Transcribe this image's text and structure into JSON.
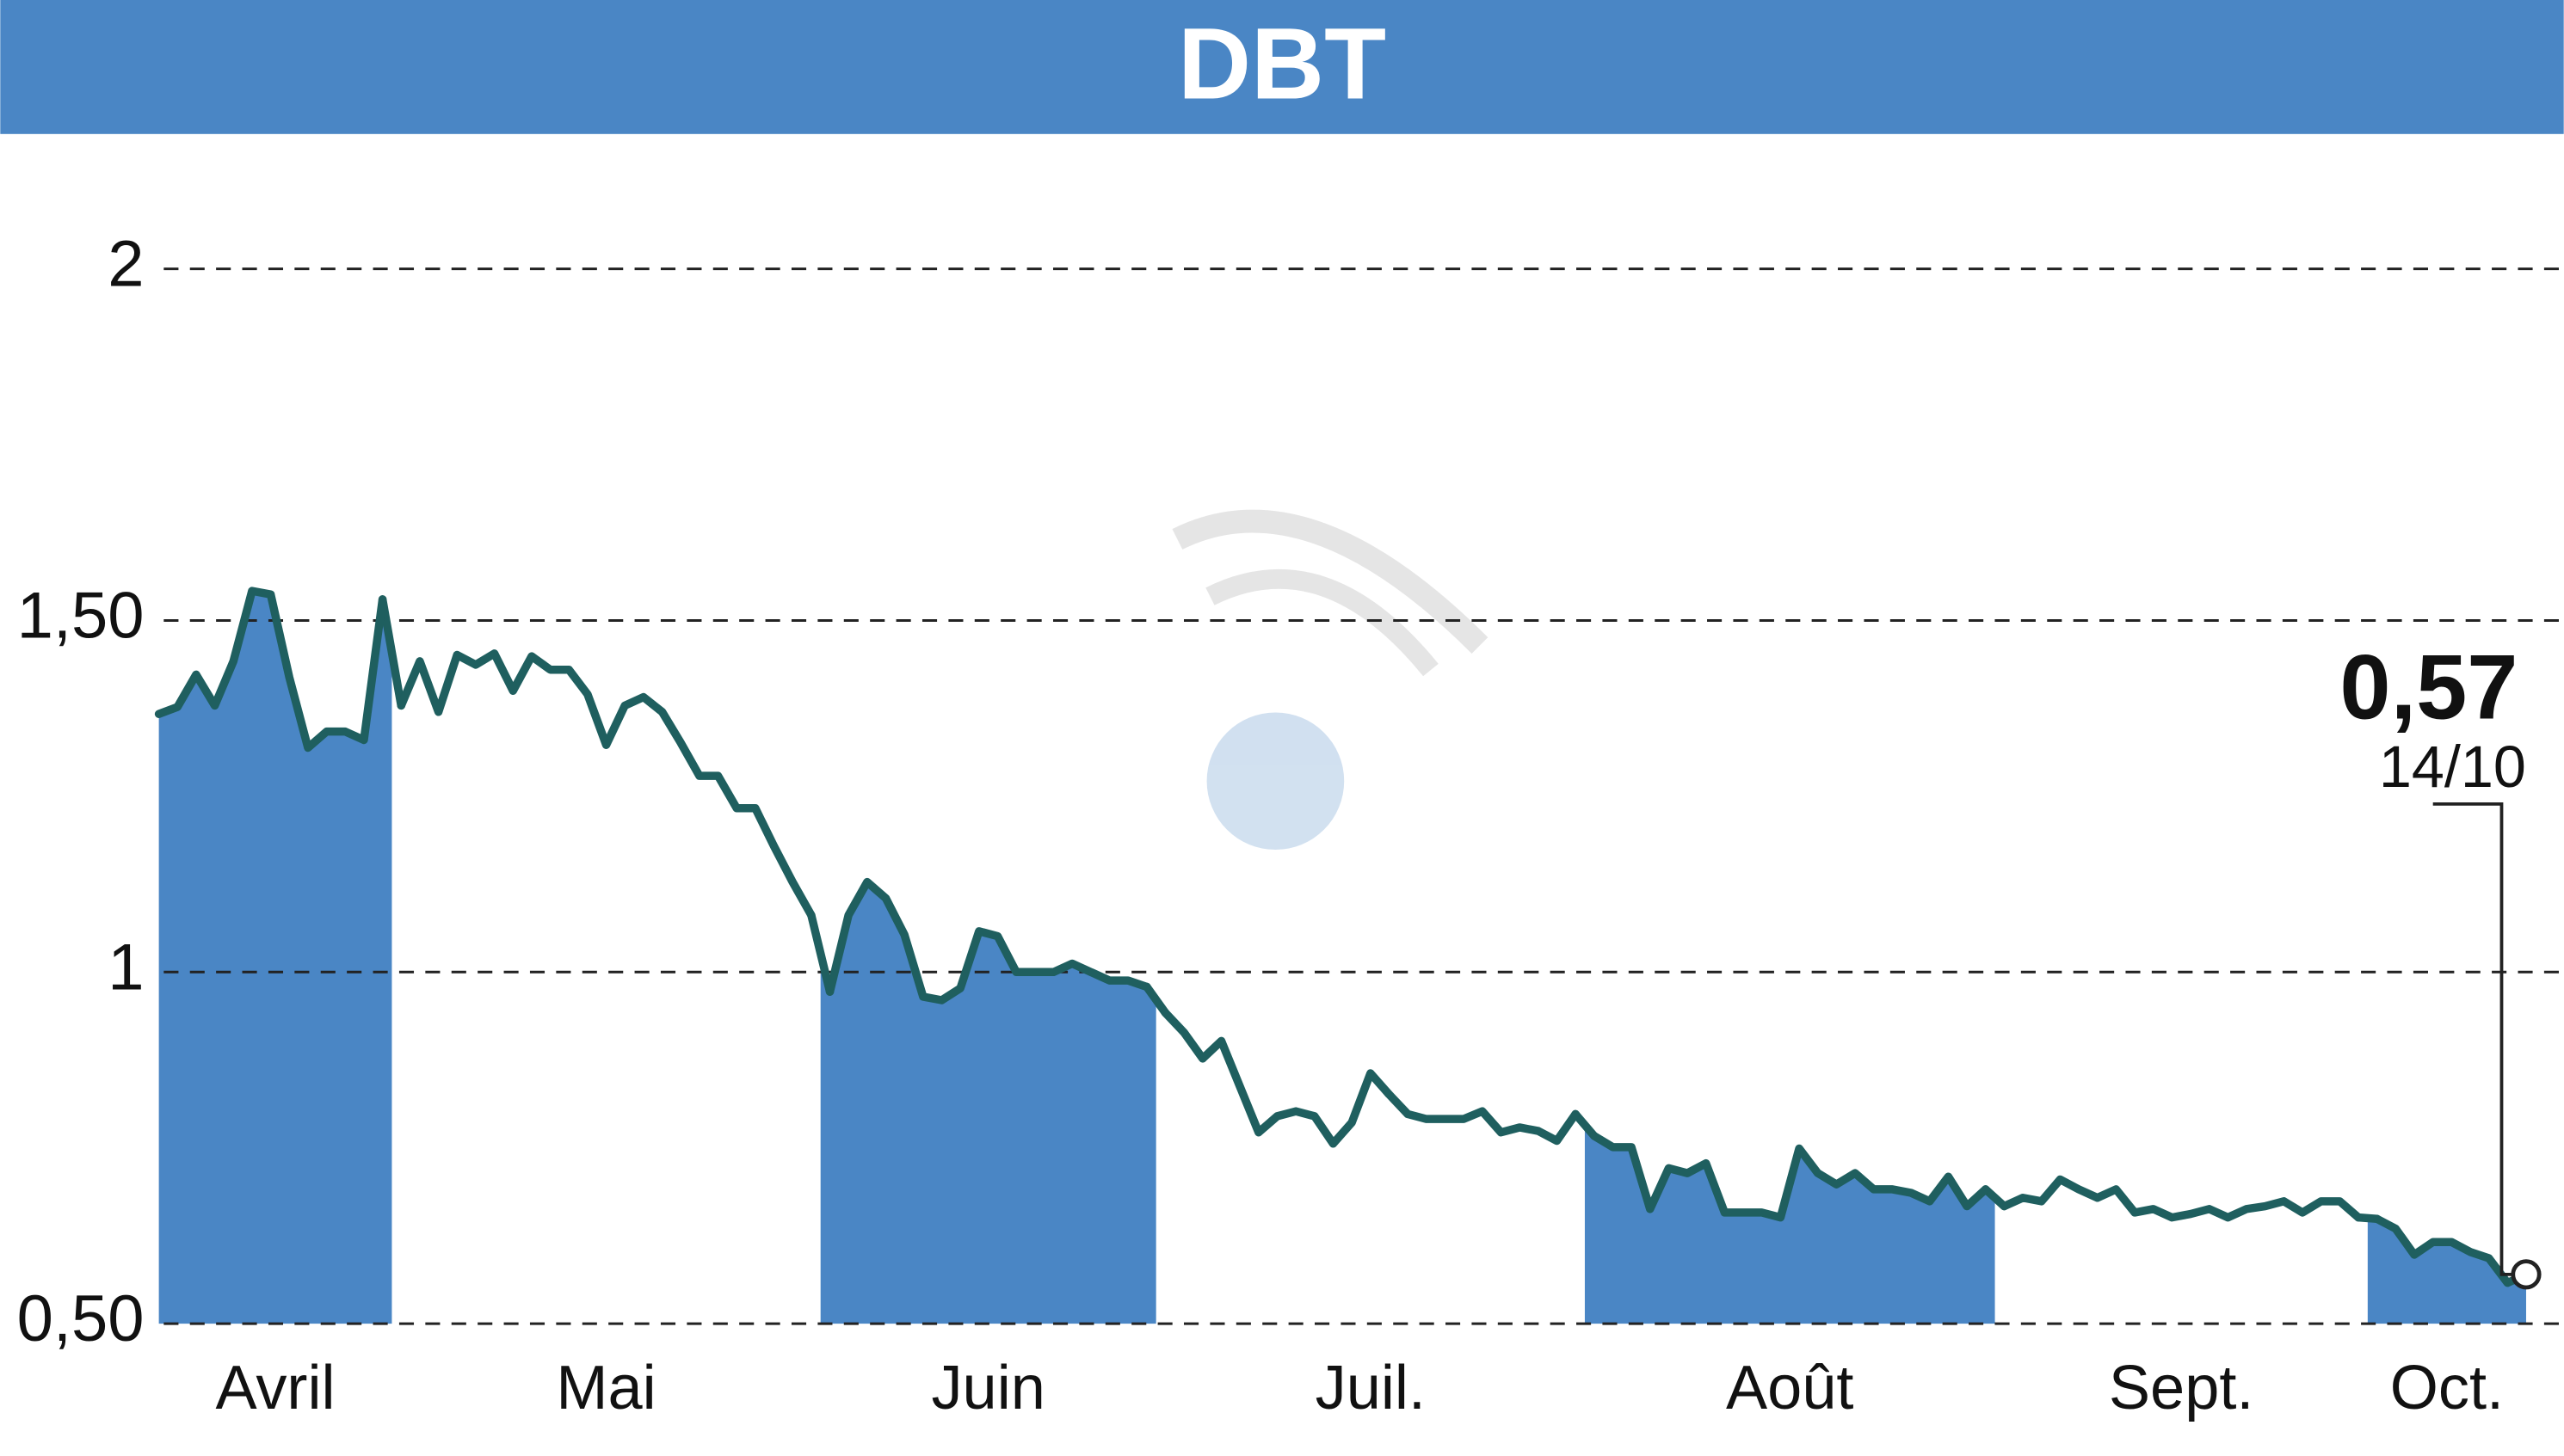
{
  "chart_data": {
    "type": "line",
    "title": "DBT",
    "color": "#1f5f5f",
    "fill_color": "#4a86c5",
    "months": [
      {
        "name": "Avril",
        "values": [
          1.367,
          1.377,
          1.423,
          1.379,
          1.442,
          1.542,
          1.537,
          1.419,
          1.319,
          1.342,
          1.342,
          1.33,
          1.53
        ]
      },
      {
        "name": "Mai",
        "values": [
          1.379,
          1.442,
          1.37,
          1.451,
          1.437,
          1.453,
          1.4,
          1.449,
          1.43,
          1.43,
          1.395,
          1.323,
          1.379,
          1.391,
          1.37,
          1.326,
          1.279,
          1.279,
          1.233,
          1.233,
          1.179,
          1.128,
          1.081
        ]
      },
      {
        "name": "Juin",
        "values": [
          0.972,
          1.081,
          1.128,
          1.105,
          1.053,
          0.965,
          0.96,
          0.977,
          1.058,
          1.051,
          1.0,
          1.0,
          1.0,
          1.012,
          1.0,
          0.988,
          0.988,
          0.979
        ]
      },
      {
        "name": "Juil.",
        "values": [
          0.942,
          0.914,
          0.877,
          0.902,
          0.837,
          0.772,
          0.795,
          0.802,
          0.795,
          0.756,
          0.786,
          0.856,
          0.826,
          0.798,
          0.791,
          0.791,
          0.791,
          0.802,
          0.772,
          0.779,
          0.774,
          0.76,
          0.798
        ]
      },
      {
        "name": "Août",
        "values": [
          0.767,
          0.751,
          0.751,
          0.663,
          0.721,
          0.714,
          0.728,
          0.658,
          0.658,
          0.658,
          0.651,
          0.749,
          0.714,
          0.698,
          0.714,
          0.691,
          0.691,
          0.686,
          0.674,
          0.709,
          0.667,
          0.691
        ]
      },
      {
        "name": "Sept.",
        "values": [
          0.667,
          0.679,
          0.674,
          0.705,
          0.691,
          0.679,
          0.691,
          0.658,
          0.663,
          0.651,
          0.656,
          0.663,
          0.651,
          0.663,
          0.667,
          0.674,
          0.658,
          0.674,
          0.674,
          0.651
        ]
      },
      {
        "name": "Oct.",
        "values": [
          0.649,
          0.635,
          0.598,
          0.616,
          0.616,
          0.602,
          0.593,
          0.558,
          0.57
        ]
      }
    ],
    "ylim": [
      0.5,
      2.15
    ],
    "yticks": [
      {
        "value": 0.5,
        "label": "0,50"
      },
      1,
      {
        "value": 1.5,
        "label": "1,50"
      },
      2
    ],
    "grid": true,
    "last_label": "0,57",
    "last_date": "14/10"
  }
}
